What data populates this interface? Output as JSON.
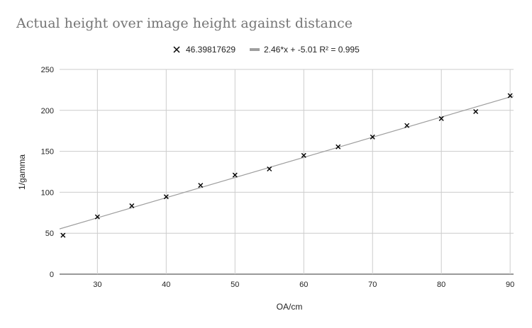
{
  "chart_data": {
    "type": "scatter",
    "title": "Actual height over image height against distance",
    "xlabel": "OA/cm",
    "ylabel": "1/gamma",
    "xlim": [
      24.5,
      90.5
    ],
    "ylim": [
      0,
      250
    ],
    "xticks": [
      30,
      40,
      50,
      60,
      70,
      80,
      90
    ],
    "yticks": [
      0,
      50,
      100,
      150,
      200,
      250
    ],
    "grid": true,
    "legend": "top-center",
    "series": [
      {
        "name": "46.39817629",
        "marker": "x",
        "color": "#000000",
        "x": [
          25,
          30,
          35,
          40,
          45,
          50,
          55,
          60,
          65,
          70,
          75,
          80,
          85,
          90
        ],
        "y": [
          47.5,
          70,
          83.5,
          94.5,
          108.5,
          121,
          128.5,
          145,
          155.5,
          167.5,
          181.5,
          190,
          198.5,
          218
        ]
      }
    ],
    "trendline": {
      "name": "2.46*x + -5.01 R² = 0.995",
      "slope": 2.46,
      "intercept": -5.01,
      "color": "#9e9e9e"
    }
  }
}
